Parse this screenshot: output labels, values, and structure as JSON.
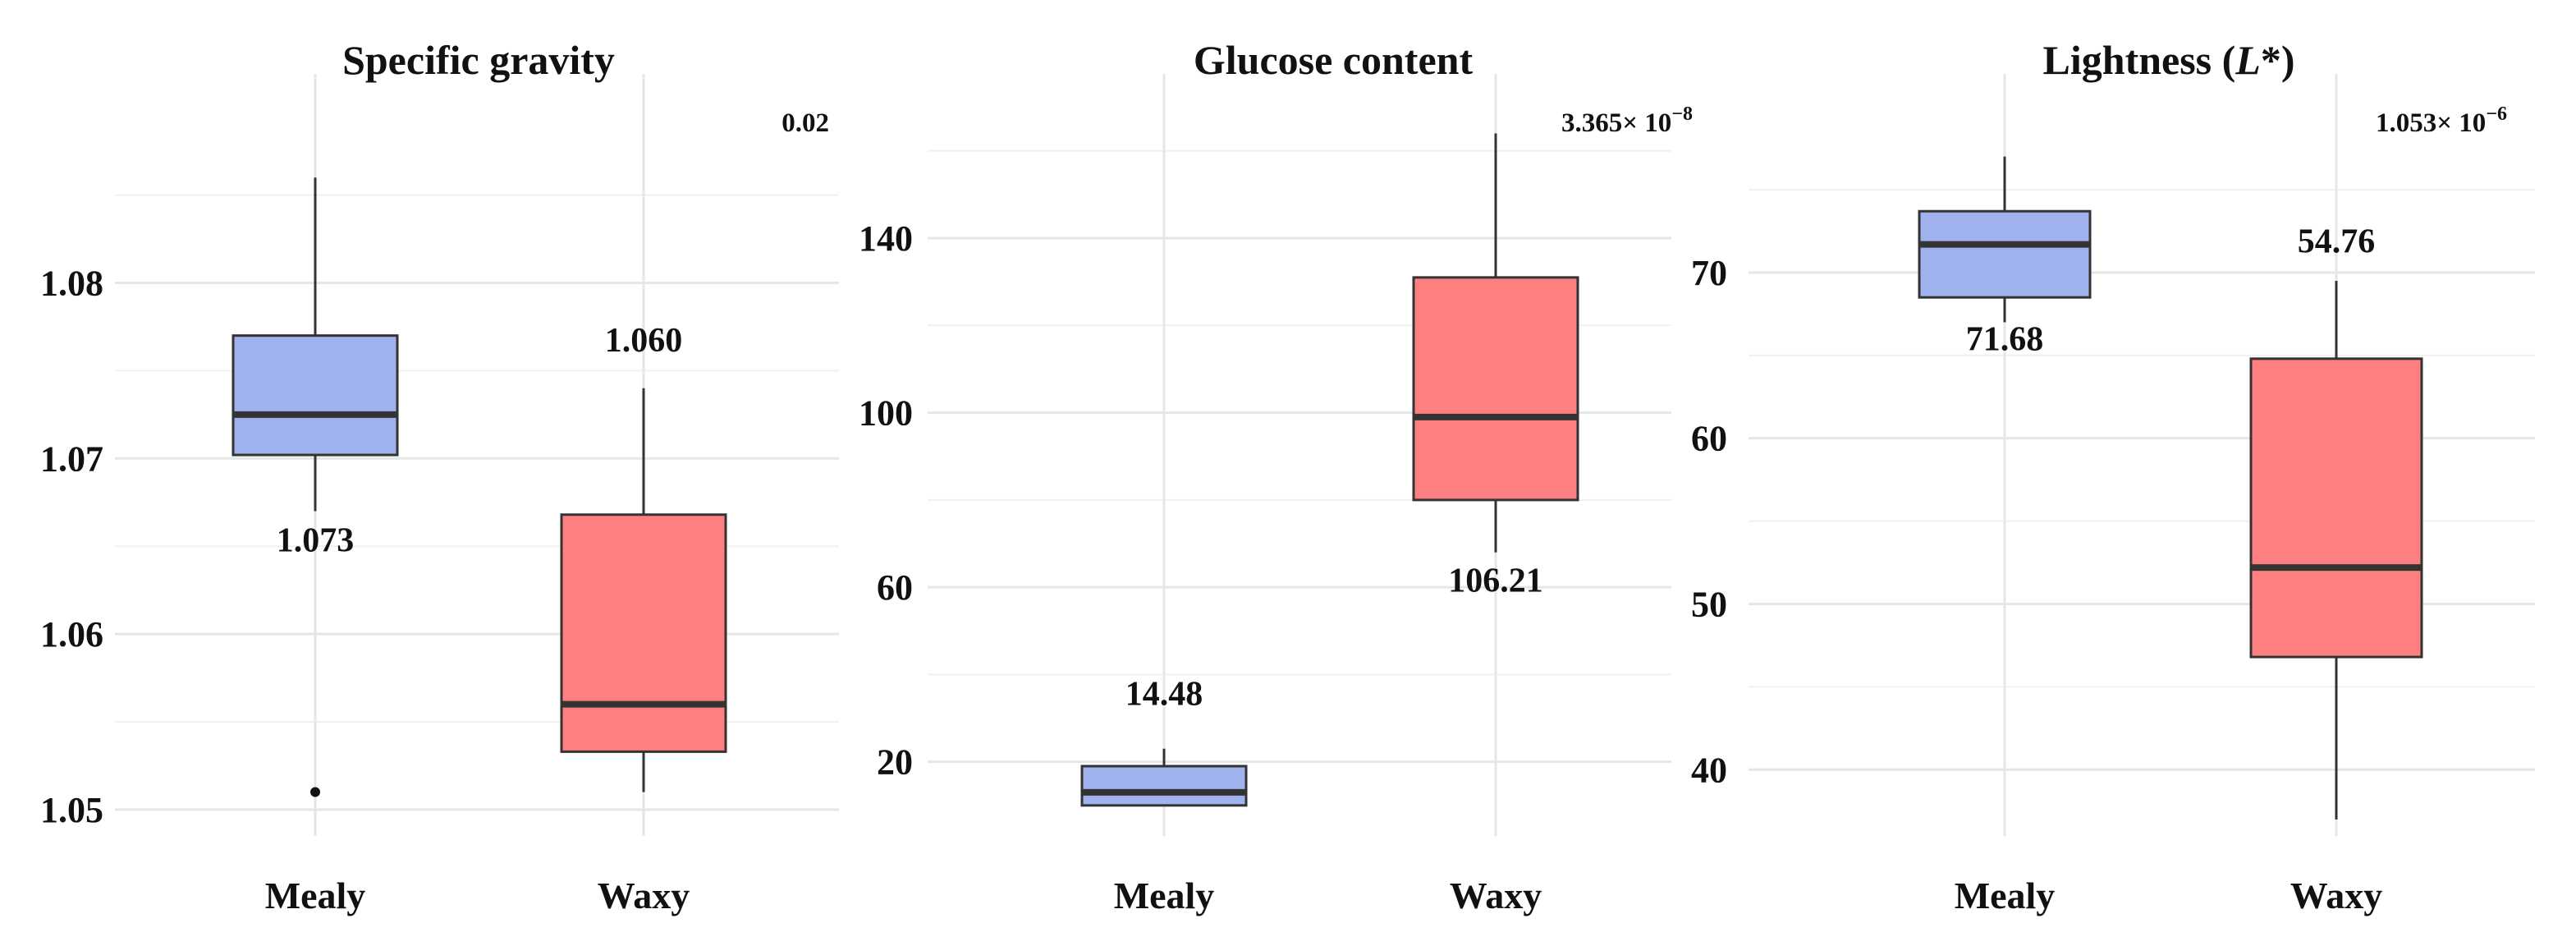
{
  "chart_data": [
    {
      "type": "boxplot",
      "title": "Specific gravity",
      "title_italic_part": "",
      "title_suffix": "",
      "categories": [
        "Mealy",
        "Waxy"
      ],
      "ylim": [
        1.0485,
        1.0905
      ],
      "yticks": [
        1.05,
        1.06,
        1.07,
        1.08
      ],
      "ytick_labels": [
        "1.05",
        "1.06",
        "1.07",
        "1.08"
      ],
      "boxes": [
        {
          "name": "Mealy",
          "whisker_low": 1.067,
          "q1": 1.0702,
          "median": 1.0725,
          "q3": 1.077,
          "whisker_high": 1.086,
          "outliers": [
            1.051
          ],
          "color": "#a0b2ee"
        },
        {
          "name": "Waxy",
          "whisker_low": 1.051,
          "q1": 1.0533,
          "median": 1.056,
          "q3": 1.0668,
          "whisker_high": 1.074,
          "outliers": [],
          "color": "#fd7f7f"
        }
      ],
      "annotations": [
        {
          "text": "1.073",
          "category": "Mealy",
          "y": 1.0647
        },
        {
          "text": "1.060",
          "category": "Waxy",
          "y": 1.0761
        }
      ],
      "p_value": {
        "base": "0.02",
        "exponent": ""
      }
    },
    {
      "type": "boxplot",
      "title": "Glucose content",
      "title_italic_part": "",
      "title_suffix": "",
      "categories": [
        "Mealy",
        "Waxy"
      ],
      "ylim": [
        3,
        172
      ],
      "yticks": [
        20,
        60,
        100,
        140
      ],
      "ytick_labels": [
        "20",
        "60",
        "100",
        "140"
      ],
      "boxes": [
        {
          "name": "Mealy",
          "whisker_low": 10,
          "q1": 10,
          "median": 13,
          "q3": 19,
          "whisker_high": 23,
          "outliers": [],
          "color": "#a0b2ee"
        },
        {
          "name": "Waxy",
          "whisker_low": 68,
          "q1": 80,
          "median": 99,
          "q3": 131,
          "whisker_high": 164,
          "outliers": [],
          "color": "#fd7f7f"
        }
      ],
      "annotations": [
        {
          "text": "14.48",
          "category": "Mealy",
          "y": 33
        },
        {
          "text": "106.21",
          "category": "Waxy",
          "y": 59
        }
      ],
      "p_value": {
        "base": "3.365× 10",
        "exponent": "−8"
      }
    },
    {
      "type": "boxplot",
      "title": "Lightness (",
      "title_italic_part": "L",
      "title_suffix": "*)",
      "categories": [
        "Mealy",
        "Waxy"
      ],
      "ylim": [
        36,
        80.5
      ],
      "yticks": [
        40,
        50,
        60,
        70
      ],
      "ytick_labels": [
        "40",
        "50",
        "60",
        "70"
      ],
      "boxes": [
        {
          "name": "Mealy",
          "whisker_low": 67,
          "q1": 68.5,
          "median": 71.7,
          "q3": 73.7,
          "whisker_high": 77,
          "outliers": [],
          "color": "#a0b2ee"
        },
        {
          "name": "Waxy",
          "whisker_low": 37,
          "q1": 46.8,
          "median": 52.2,
          "q3": 64.8,
          "whisker_high": 69.5,
          "outliers": [],
          "color": "#fd7f7f"
        }
      ],
      "annotations": [
        {
          "text": "71.68",
          "category": "Mealy",
          "y": 65.3
        },
        {
          "text": "54.76",
          "category": "Waxy",
          "y": 71.2
        }
      ],
      "p_value": {
        "base": "1.053× 10",
        "exponent": "−6"
      }
    }
  ]
}
